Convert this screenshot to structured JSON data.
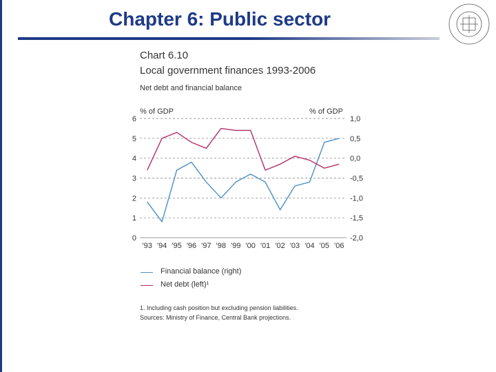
{
  "slide": {
    "title": "Chapter 6: Public sector"
  },
  "colors": {
    "title": "#1f3a86",
    "financial_balance": "#4a8fc4",
    "net_debt": "#b0306b"
  },
  "chart_data": {
    "type": "line",
    "number": "Chart 6.10",
    "title": "Local government finances 1993-2006",
    "subtitle": "Net debt and financial balance",
    "left_axis_unit": "% of GDP",
    "right_axis_unit": "% of GDP",
    "categories": [
      "'93",
      "'94",
      "'95",
      "'96",
      "'97",
      "'98",
      "'99",
      "'00",
      "'01",
      "'02",
      "'03",
      "'04",
      "'05",
      "'06"
    ],
    "left_ticks": [
      "0",
      "1",
      "2",
      "3",
      "4",
      "5",
      "6"
    ],
    "right_ticks": [
      "-2,0",
      "-1,5",
      "-1,0",
      "-0,5",
      "0,0",
      "0,5",
      "1,0"
    ],
    "ylim_left": [
      0,
      6
    ],
    "ylim_right": [
      -2.0,
      1.0
    ],
    "grid": "dashed horizontal",
    "series": [
      {
        "name": "Financial balance (right)",
        "axis": "right",
        "color": "#4a8fc4",
        "values": [
          -1.1,
          -1.6,
          -0.3,
          -0.1,
          -0.6,
          -1.0,
          -0.6,
          -0.4,
          -0.6,
          -1.3,
          -0.7,
          -0.6,
          0.4,
          0.5
        ]
      },
      {
        "name": "Net debt (left)¹",
        "axis": "left",
        "color": "#b0306b",
        "values": [
          3.4,
          5.0,
          5.3,
          4.8,
          4.5,
          5.5,
          5.4,
          5.4,
          3.4,
          3.7,
          4.1,
          3.9,
          3.5,
          3.7
        ]
      }
    ],
    "footnotes": [
      "1. Including cash position but excluding pension liabilities.",
      "Sources: Ministry of Finance, Central Bank projections."
    ]
  }
}
